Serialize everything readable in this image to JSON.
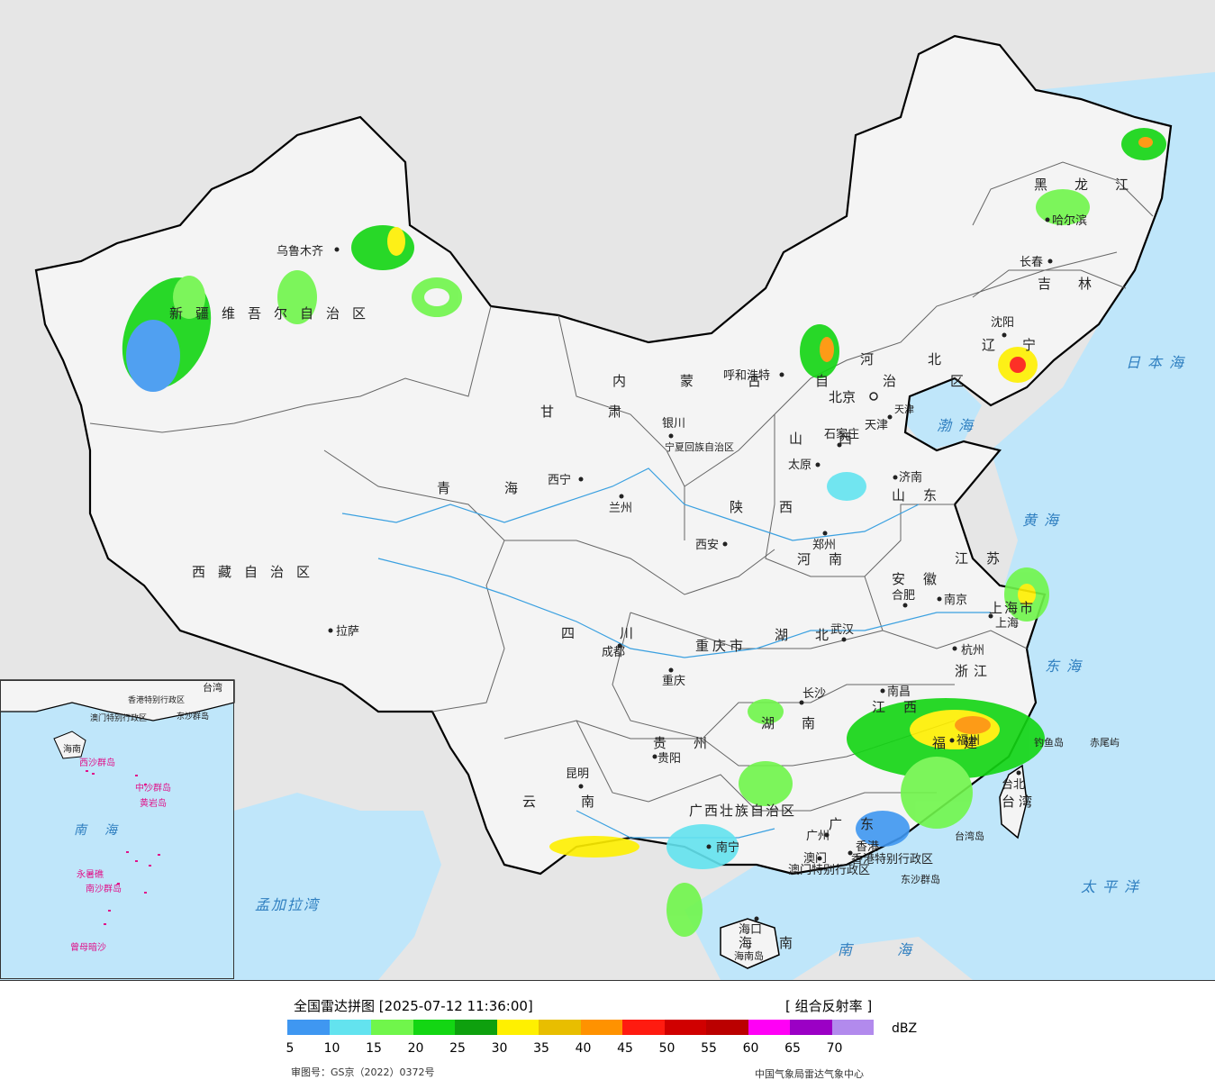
{
  "legend": {
    "title": "全国雷达拼图 [2025-07-12 11:36:00]",
    "product": "[ 组合反射率 ]",
    "unit": "dBZ",
    "colors": [
      "#3f97f1",
      "#63e3ef",
      "#70f64b",
      "#13d613",
      "#0ea00e",
      "#fff000",
      "#e8be00",
      "#ff9200",
      "#ff1b10",
      "#d00000",
      "#bb0000",
      "#ff00f6",
      "#9b00c5",
      "#b28aed"
    ],
    "ticks": [
      "5",
      "10",
      "15",
      "20",
      "25",
      "30",
      "35",
      "40",
      "45",
      "50",
      "55",
      "60",
      "65",
      "70"
    ],
    "approval_no": "审图号：GS京（2022）0372号",
    "credit": "中国气象局雷达气象中心"
  },
  "map": {
    "provinces": [
      {
        "name": "新疆维吾尔自治区"
      },
      {
        "name": "西藏自治区"
      },
      {
        "name": "青海"
      },
      {
        "name": "甘肃"
      },
      {
        "name": "内蒙古自治区"
      },
      {
        "name": "黑龙江"
      },
      {
        "name": "吉林"
      },
      {
        "name": "辽宁"
      },
      {
        "name": "河北"
      },
      {
        "name": "山西"
      },
      {
        "name": "山东"
      },
      {
        "name": "河南"
      },
      {
        "name": "陕西"
      },
      {
        "name": "四川"
      },
      {
        "name": "重庆市"
      },
      {
        "name": "湖北"
      },
      {
        "name": "湖南"
      },
      {
        "name": "江西"
      },
      {
        "name": "安徽"
      },
      {
        "name": "江苏"
      },
      {
        "name": "浙江"
      },
      {
        "name": "福建"
      },
      {
        "name": "广东"
      },
      {
        "name": "广西壮族自治区"
      },
      {
        "name": "贵州"
      },
      {
        "name": "云南"
      },
      {
        "name": "海南"
      },
      {
        "name": "台湾"
      },
      {
        "name": "宁夏回族自治区"
      },
      {
        "name": "上海市"
      },
      {
        "name": "天津"
      },
      {
        "name": "香港特别行政区"
      },
      {
        "name": "澳门特别行政区"
      }
    ],
    "cities": [
      "乌鲁木齐",
      "呼和浩特",
      "北京",
      "天津",
      "石家庄",
      "太原",
      "济南",
      "沈阳",
      "长春",
      "哈尔滨",
      "银川",
      "西宁",
      "兰州",
      "西安",
      "郑州",
      "合肥",
      "南京",
      "上海",
      "杭州",
      "武汉",
      "长沙",
      "南昌",
      "福州",
      "台北",
      "广州",
      "香港",
      "澳门",
      "南宁",
      "贵阳",
      "昆明",
      "成都",
      "重庆",
      "拉萨",
      "海口"
    ],
    "seas": [
      "日本海",
      "渤海",
      "黄海",
      "东海",
      "太平洋",
      "南海",
      "孟加拉湾"
    ],
    "islands": [
      "钓鱼岛",
      "赤尾屿",
      "台湾岛",
      "东沙群岛",
      "海南岛"
    ],
    "inset": {
      "labels": [
        "南海",
        "台湾",
        "香港特别行政区",
        "澳门特别行政区",
        "东沙群岛",
        "海南",
        "西沙群岛",
        "中沙群岛",
        "黄岩岛",
        "南沙群岛",
        "永暑礁",
        "曾母暗沙"
      ]
    }
  }
}
